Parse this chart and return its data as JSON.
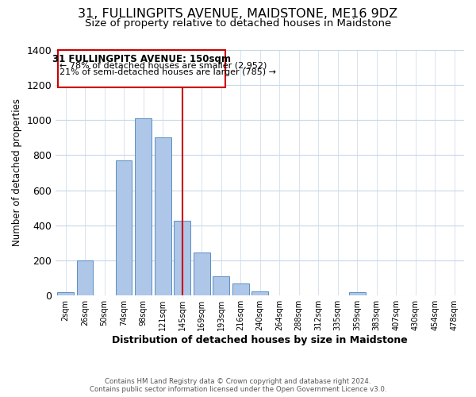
{
  "title": "31, FULLINGPITS AVENUE, MAIDSTONE, ME16 9DZ",
  "subtitle": "Size of property relative to detached houses in Maidstone",
  "xlabel": "Distribution of detached houses by size in Maidstone",
  "ylabel": "Number of detached properties",
  "bar_labels": [
    "2sqm",
    "26sqm",
    "50sqm",
    "74sqm",
    "98sqm",
    "121sqm",
    "145sqm",
    "169sqm",
    "193sqm",
    "216sqm",
    "240sqm",
    "264sqm",
    "288sqm",
    "312sqm",
    "335sqm",
    "359sqm",
    "383sqm",
    "407sqm",
    "430sqm",
    "454sqm",
    "478sqm"
  ],
  "bar_values": [
    20,
    200,
    0,
    770,
    1010,
    900,
    425,
    245,
    110,
    70,
    25,
    0,
    0,
    0,
    0,
    20,
    0,
    0,
    0,
    0,
    0
  ],
  "bar_color": "#aec6e8",
  "bar_edge_color": "#5a8fc2",
  "ylim": [
    0,
    1400
  ],
  "yticks": [
    0,
    200,
    400,
    600,
    800,
    1000,
    1200,
    1400
  ],
  "vline_x_index": 6,
  "vline_color": "#cc0000",
  "annotation_title": "31 FULLINGPITS AVENUE: 150sqm",
  "annotation_line1": "← 78% of detached houses are smaller (2,952)",
  "annotation_line2": "21% of semi-detached houses are larger (785) →",
  "annotation_box_color": "#ffffff",
  "annotation_box_edge": "#cc0000",
  "footer1": "Contains HM Land Registry data © Crown copyright and database right 2024.",
  "footer2": "Contains public sector information licensed under the Open Government Licence v3.0.",
  "bg_color": "#ffffff",
  "grid_color": "#c8d8e8",
  "title_fontsize": 11.5,
  "subtitle_fontsize": 9.5
}
